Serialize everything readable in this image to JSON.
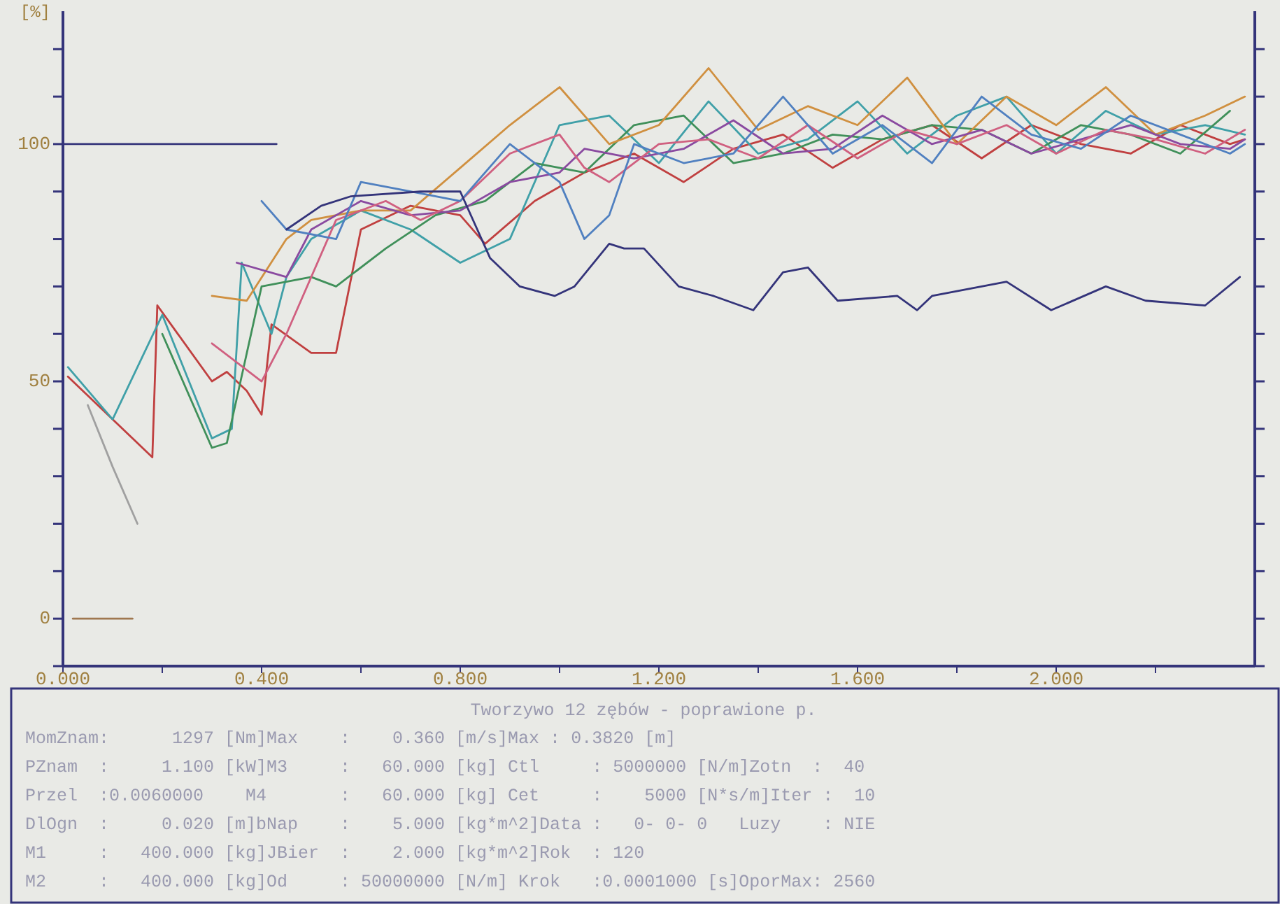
{
  "chart_data": {
    "type": "line",
    "ylabel": "[%]",
    "xlim": [
      0,
      2.4
    ],
    "ylim": [
      -10,
      128
    ],
    "xticks": [
      {
        "value": 0,
        "label": "0.000"
      },
      {
        "value": 0.2,
        "label": null
      },
      {
        "value": 0.4,
        "label": "0.400"
      },
      {
        "value": 0.6,
        "label": null
      },
      {
        "value": 0.8,
        "label": "0.800"
      },
      {
        "value": 1.0,
        "label": null
      },
      {
        "value": 1.2,
        "label": "1.200"
      },
      {
        "value": 1.4,
        "label": null
      },
      {
        "value": 1.6,
        "label": "1.600"
      },
      {
        "value": 1.8,
        "label": null
      },
      {
        "value": 2.0,
        "label": "2.000"
      },
      {
        "value": 2.2,
        "label": null
      }
    ],
    "yticks": [
      {
        "value": -10,
        "label": null
      },
      0,
      {
        "value": 10,
        "label": null
      },
      {
        "value": 20,
        "label": null
      },
      {
        "value": 30,
        "label": null
      },
      {
        "value": 40,
        "label": null
      },
      50,
      {
        "value": 60,
        "label": null
      },
      {
        "value": 70,
        "label": null
      },
      {
        "value": 80,
        "label": null
      },
      {
        "value": 90,
        "label": null
      },
      100,
      {
        "value": 110,
        "label": null
      },
      {
        "value": 120,
        "label": null
      }
    ],
    "grid": false,
    "marker": "none",
    "line_style": "solid",
    "series": [
      {
        "color": "#34347a",
        "x": [
          0,
          0.43
        ],
        "values": [
          100,
          100
        ]
      },
      {
        "color": "#a07850",
        "x": [
          0.02,
          0.14
        ],
        "values": [
          0,
          0
        ]
      },
      {
        "color": "#a0a0a0",
        "x": [
          0.05,
          0.1,
          0.15
        ],
        "values": [
          45,
          32,
          20
        ]
      },
      {
        "color": "#c04040",
        "x": [
          0.01,
          0.18,
          0.19,
          0.3,
          0.33,
          0.37,
          0.4,
          0.42,
          0.5,
          0.55,
          0.6,
          0.7,
          0.8,
          0.85,
          0.95,
          1.05,
          1.15,
          1.25,
          1.35,
          1.45,
          1.55,
          1.65,
          1.75,
          1.85,
          1.95,
          2.05,
          2.15,
          2.25,
          2.35,
          2.38
        ],
        "values": [
          51,
          34,
          66,
          50,
          52,
          48,
          43,
          62,
          56,
          56,
          82,
          87,
          85,
          79,
          88,
          94,
          98,
          92,
          99,
          102,
          95,
          101,
          104,
          97,
          104,
          100,
          98,
          104,
          100,
          101
        ]
      },
      {
        "color": "#40a0a8",
        "x": [
          0.01,
          0.1,
          0.2,
          0.3,
          0.34,
          0.36,
          0.42,
          0.45,
          0.5,
          0.6,
          0.7,
          0.8,
          0.9,
          1.0,
          1.1,
          1.2,
          1.3,
          1.4,
          1.5,
          1.6,
          1.7,
          1.8,
          1.9,
          2.0,
          2.1,
          2.2,
          2.3,
          2.38
        ],
        "values": [
          53,
          42,
          64,
          38,
          40,
          75,
          60,
          72,
          80,
          86,
          82,
          75,
          80,
          104,
          106,
          96,
          109,
          98,
          101,
          109,
          98,
          106,
          110,
          98,
          107,
          102,
          104,
          102
        ]
      },
      {
        "color": "#40905a",
        "x": [
          0.2,
          0.3,
          0.33,
          0.4,
          0.5,
          0.55,
          0.65,
          0.75,
          0.85,
          0.95,
          1.05,
          1.15,
          1.25,
          1.35,
          1.45,
          1.55,
          1.65,
          1.75,
          1.85,
          1.95,
          2.05,
          2.15,
          2.25,
          2.35
        ],
        "values": [
          60,
          36,
          37,
          70,
          72,
          70,
          78,
          85,
          88,
          96,
          94,
          104,
          106,
          96,
          98,
          102,
          101,
          104,
          103,
          98,
          104,
          102,
          98,
          107
        ]
      },
      {
        "color": "#d09040",
        "x": [
          0.3,
          0.37,
          0.45,
          0.5,
          0.6,
          0.7,
          0.8,
          0.9,
          1.0,
          1.1,
          1.2,
          1.3,
          1.4,
          1.5,
          1.6,
          1.7,
          1.8,
          1.9,
          2.0,
          2.1,
          2.2,
          2.3,
          2.38
        ],
        "values": [
          68,
          67,
          80,
          84,
          86,
          86,
          95,
          104,
          112,
          100,
          104,
          116,
          103,
          108,
          104,
          114,
          100,
          110,
          104,
          112,
          102,
          106,
          110
        ]
      },
      {
        "color": "#8a4aa0",
        "x": [
          0.35,
          0.45,
          0.5,
          0.6,
          0.7,
          0.8,
          0.9,
          1.0,
          1.05,
          1.15,
          1.25,
          1.35,
          1.45,
          1.55,
          1.65,
          1.75,
          1.85,
          1.95,
          2.05,
          2.15,
          2.25,
          2.35,
          2.38
        ],
        "values": [
          75,
          72,
          82,
          88,
          85,
          86,
          92,
          94,
          99,
          97,
          99,
          105,
          98,
          99,
          106,
          100,
          103,
          98,
          101,
          104,
          100,
          99,
          101
        ]
      },
      {
        "color": "#d06080",
        "x": [
          0.3,
          0.4,
          0.45,
          0.55,
          0.65,
          0.72,
          0.8,
          0.9,
          1.0,
          1.05,
          1.1,
          1.2,
          1.3,
          1.4,
          1.5,
          1.6,
          1.7,
          1.8,
          1.9,
          2.0,
          2.1,
          2.2,
          2.3,
          2.38
        ],
        "values": [
          58,
          50,
          60,
          84,
          88,
          84,
          88,
          98,
          102,
          95,
          92,
          100,
          101,
          97,
          104,
          97,
          103,
          100,
          104,
          98,
          103,
          101,
          98,
          103
        ]
      },
      {
        "color": "#5080c0",
        "x": [
          0.4,
          0.45,
          0.55,
          0.6,
          0.7,
          0.8,
          0.9,
          1.0,
          1.05,
          1.1,
          1.15,
          1.25,
          1.35,
          1.45,
          1.55,
          1.65,
          1.75,
          1.85,
          1.95,
          2.05,
          2.15,
          2.25,
          2.35,
          2.38
        ],
        "values": [
          88,
          82,
          80,
          92,
          90,
          88,
          100,
          92,
          80,
          85,
          100,
          96,
          98,
          110,
          98,
          104,
          96,
          110,
          102,
          99,
          106,
          102,
          98,
          100
        ]
      },
      {
        "color": "#34347a",
        "x": [
          0.45,
          0.52,
          0.58,
          0.72,
          0.8,
          0.86,
          0.92,
          0.99,
          1.03,
          1.1,
          1.13,
          1.17,
          1.24,
          1.31,
          1.39,
          1.45,
          1.5,
          1.56,
          1.68,
          1.72,
          1.75,
          1.9,
          1.99,
          2.1,
          2.18,
          2.3,
          2.37
        ],
        "values": [
          82,
          87,
          89,
          90,
          90,
          76,
          70,
          68,
          70,
          79,
          78,
          78,
          70,
          68,
          65,
          73,
          74,
          67,
          68,
          65,
          68,
          71,
          65,
          70,
          67,
          66,
          72
        ]
      }
    ],
    "annotations": [
      "Tworzywo 12 zębów - poprawione p.",
      "MomZnam:      1297 [Nm]Max    :    0.360 [m/s]Max : 0.3820 [m]",
      "PZnam  :     1.100 [kW]M3     :   60.000 [kg] Ctl     : 5000000 [N/m]Zotn  :  40",
      "Przel  :0.0060000    M4       :   60.000 [kg] Cet     :    5000 [N*s/m]Iter :  10",
      "DlOgn  :     0.020 [m]bNap    :    5.000 [kg*m^2]Data :   0- 0- 0   Luzy    : NIE",
      "M1     :   400.000 [kg]JBier  :    2.000 [kg*m^2]Rok  : 120",
      "M2     :   400.000 [kg]Od     : 50000000 [N/m] Krok   :0.0001000 [s]OporMax: 2560"
    ]
  }
}
